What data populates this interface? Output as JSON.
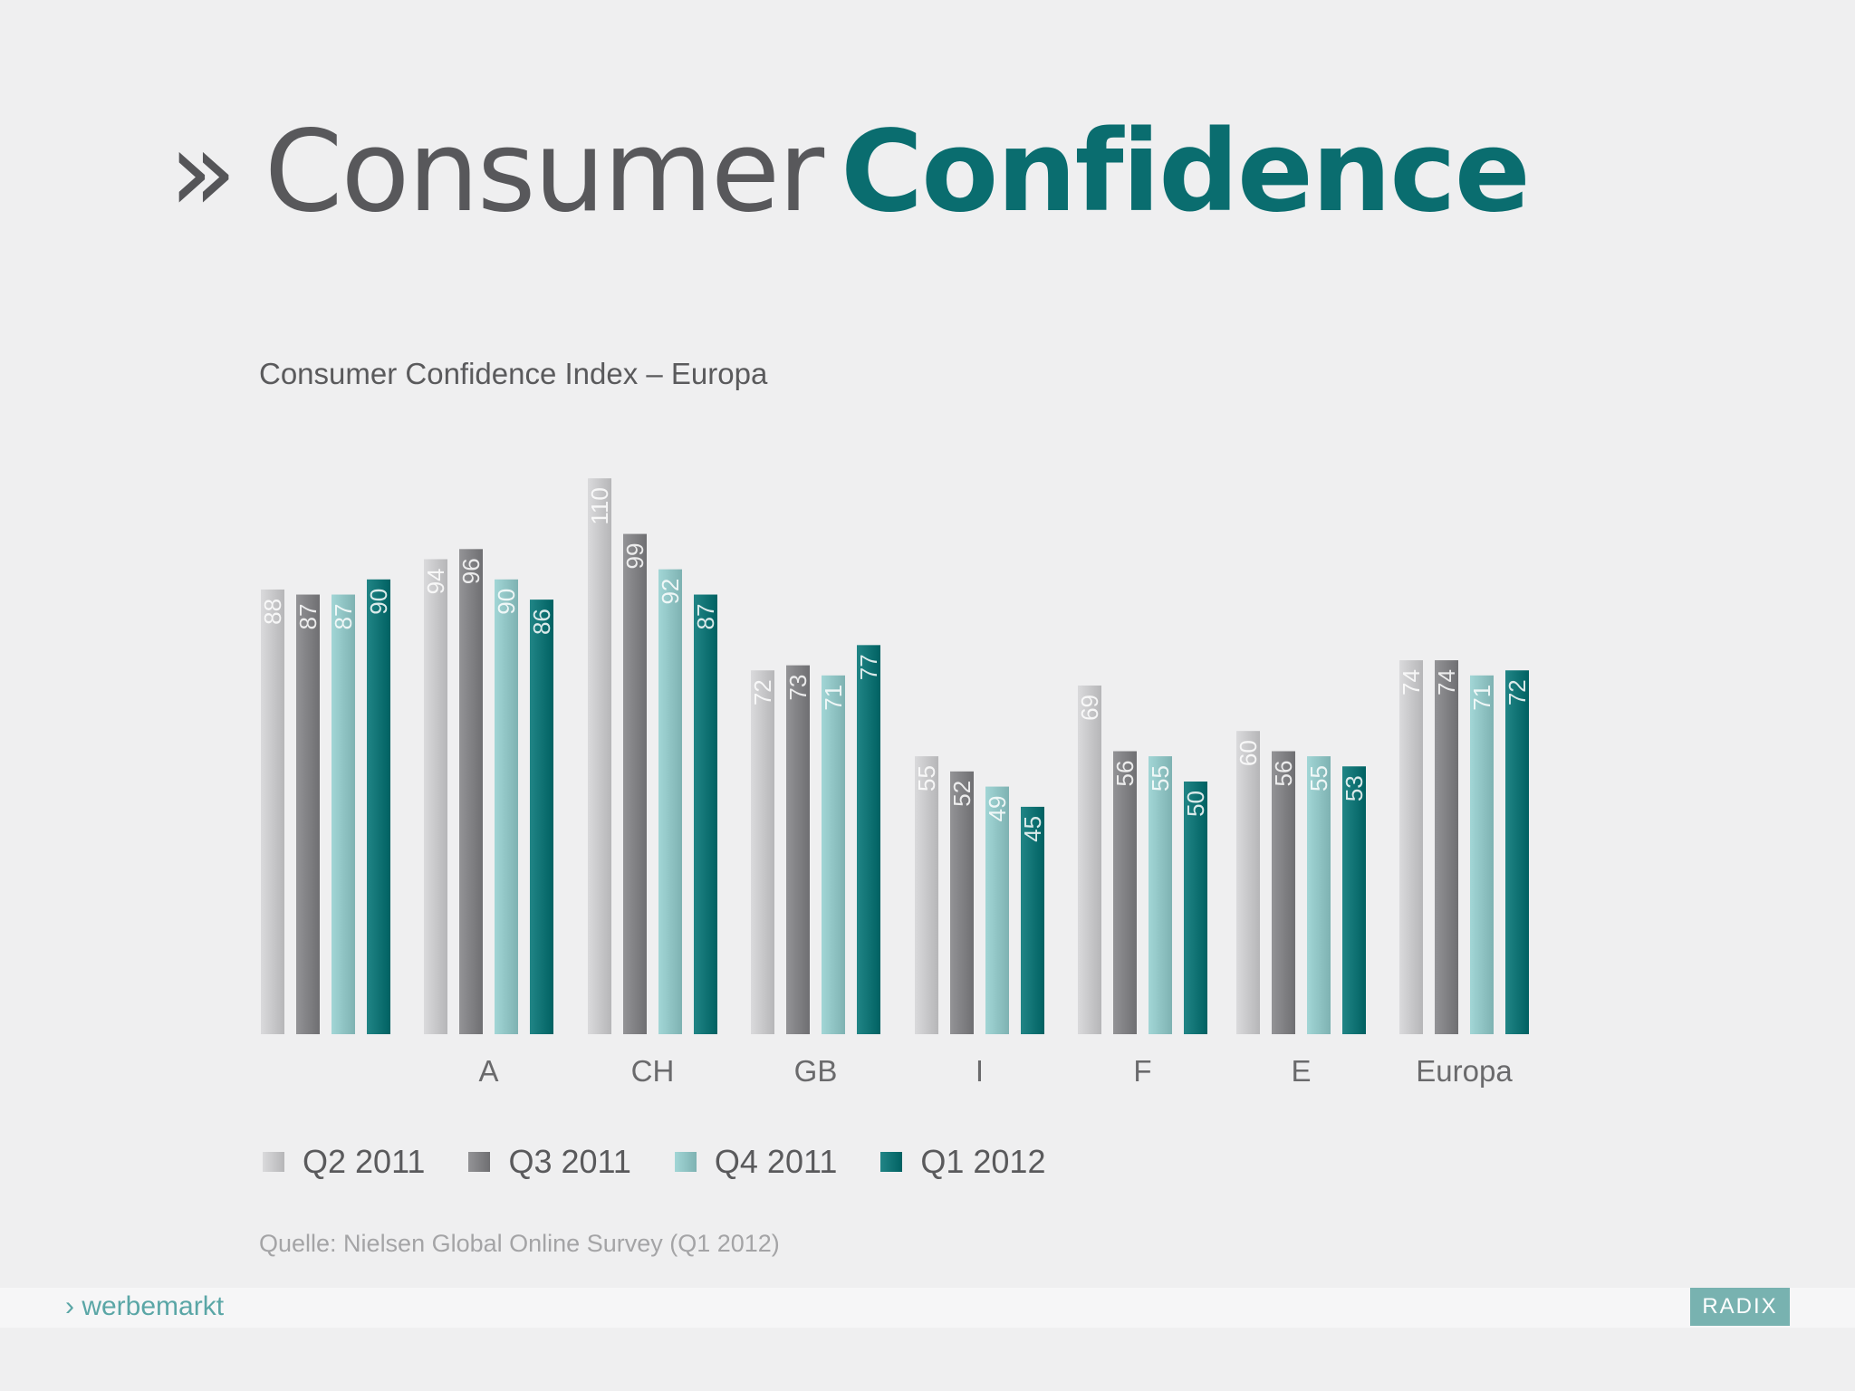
{
  "title": {
    "chevron": "»",
    "light": "Consumer",
    "bold": "Confidence"
  },
  "source": "Quelle: Nielsen Global Online Survey (Q1 2012)",
  "footer": {
    "brand": "› werbemarkt",
    "logo_text": "RADIX"
  },
  "colors": {
    "title_accent": "#0a6d6f",
    "series": [
      "#c4c4c6",
      "#7d7d80",
      "#8cc0c0",
      "#0b6f70"
    ]
  },
  "chart_data": {
    "type": "bar",
    "title": "Consumer Confidence Index – Europa",
    "categories": [
      "",
      "A",
      "CH",
      "GB",
      "I",
      "F",
      "E",
      "Europa"
    ],
    "series": [
      {
        "name": "Q2 2011",
        "values": [
          88,
          94,
          110,
          72,
          55,
          69,
          60,
          74
        ]
      },
      {
        "name": "Q3 2011",
        "values": [
          87,
          96,
          99,
          73,
          52,
          56,
          56,
          74
        ]
      },
      {
        "name": "Q4 2011",
        "values": [
          87,
          90,
          92,
          71,
          49,
          55,
          55,
          71
        ]
      },
      {
        "name": "Q1 2012",
        "values": [
          90,
          86,
          87,
          77,
          45,
          50,
          53,
          72
        ]
      }
    ],
    "ylim": [
      0,
      110
    ],
    "grid": false,
    "data_labels": "rotated inside top of bars",
    "legend_position": "bottom-left"
  }
}
